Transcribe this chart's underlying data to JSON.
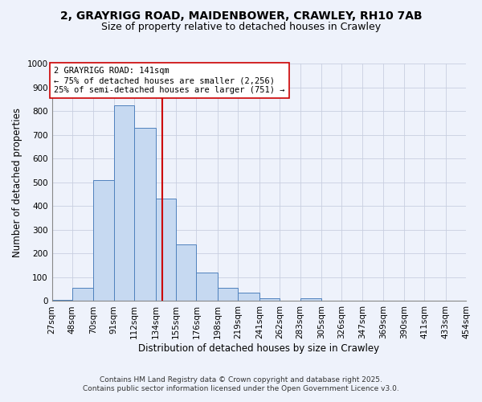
{
  "title": "2, GRAYRIGG ROAD, MAIDENBOWER, CRAWLEY, RH10 7AB",
  "subtitle": "Size of property relative to detached houses in Crawley",
  "xlabel": "Distribution of detached houses by size in Crawley",
  "ylabel": "Number of detached properties",
  "bin_edges": [
    27,
    48,
    70,
    91,
    112,
    134,
    155,
    176,
    198,
    219,
    241,
    262,
    283,
    305,
    326,
    347,
    369,
    390,
    411,
    433,
    454
  ],
  "bin_counts": [
    5,
    55,
    510,
    825,
    730,
    430,
    240,
    120,
    57,
    35,
    12,
    0,
    12,
    0,
    0,
    0,
    0,
    0,
    0,
    0
  ],
  "bar_facecolor": "#c6d9f1",
  "bar_edgecolor": "#4f81bd",
  "vline_x": 141,
  "vline_color": "#cc0000",
  "annotation_line1": "2 GRAYRIGG ROAD: 141sqm",
  "annotation_line2": "← 75% of detached houses are smaller (2,256)",
  "annotation_line3": "25% of semi-detached houses are larger (751) →",
  "annotation_box_facecolor": "white",
  "annotation_box_edgecolor": "#cc0000",
  "ylim": [
    0,
    1000
  ],
  "yticks": [
    0,
    100,
    200,
    300,
    400,
    500,
    600,
    700,
    800,
    900,
    1000
  ],
  "grid_color": "#c8cfe0",
  "bg_color": "#eef2fb",
  "footer_line1": "Contains HM Land Registry data © Crown copyright and database right 2025.",
  "footer_line2": "Contains public sector information licensed under the Open Government Licence v3.0.",
  "title_fontsize": 10,
  "subtitle_fontsize": 9,
  "axis_label_fontsize": 8.5,
  "tick_label_fontsize": 7.5,
  "annotation_fontsize": 7.5,
  "footer_fontsize": 6.5
}
